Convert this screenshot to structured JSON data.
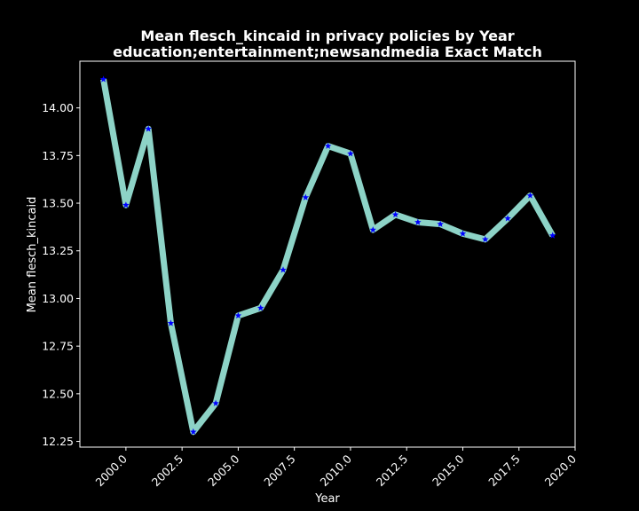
{
  "chart_data": {
    "type": "line",
    "title_line1": "Mean flesch_kincaid in privacy policies by Year",
    "title_line2": "education;entertainment;newsandmedia Exact Match",
    "xlabel": "Year",
    "ylabel": "Mean flesch_kincaid",
    "xlim": [
      1997.95,
      2020.0
    ],
    "ylim": [
      12.22,
      14.245
    ],
    "x_ticks": [
      2000.0,
      2002.5,
      2005.0,
      2007.5,
      2010.0,
      2012.5,
      2015.0,
      2017.5,
      2020.0
    ],
    "x_tick_labels": [
      "2000.0",
      "2002.5",
      "2005.0",
      "2007.5",
      "2010.0",
      "2012.5",
      "2015.0",
      "2017.5",
      "2020.0"
    ],
    "y_ticks": [
      12.25,
      12.5,
      12.75,
      13.0,
      13.25,
      13.5,
      13.75,
      14.0
    ],
    "y_tick_labels": [
      "12.25",
      "12.50",
      "12.75",
      "13.00",
      "13.25",
      "13.50",
      "13.75",
      "14.00"
    ],
    "grid": false,
    "line_color": "#8dd3c7",
    "marker_color": "#0000ff",
    "marker": "star",
    "series": [
      {
        "x": [
          1999,
          2000,
          2001,
          2002,
          2003,
          2004,
          2005,
          2006,
          2007,
          2008,
          2009,
          2010,
          2011,
          2012,
          2013,
          2014,
          2015,
          2016,
          2017,
          2018,
          2019
        ],
        "values": [
          14.15,
          13.49,
          13.89,
          12.87,
          12.3,
          12.45,
          12.91,
          12.95,
          13.15,
          13.53,
          13.8,
          13.76,
          13.36,
          13.44,
          13.4,
          13.39,
          13.34,
          13.31,
          13.42,
          13.54,
          13.33
        ]
      }
    ]
  }
}
